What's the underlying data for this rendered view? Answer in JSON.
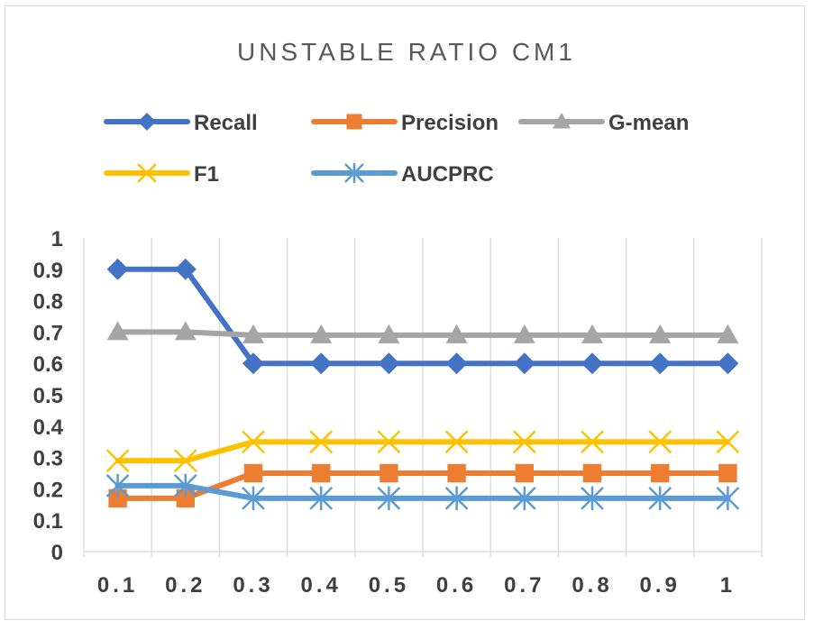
{
  "chart_data": {
    "type": "line",
    "title": "UNSTABLE RATIO CM1",
    "xlabel": "",
    "ylabel": "",
    "categories": [
      "0.1",
      "0.2",
      "0.3",
      "0.4",
      "0.5",
      "0.6",
      "0.7",
      "0.8",
      "0.9",
      "1"
    ],
    "ylim": [
      0,
      1
    ],
    "yticks": [
      "0",
      "0.1",
      "0.2",
      "0.3",
      "0.4",
      "0.5",
      "0.6",
      "0.7",
      "0.8",
      "0.9",
      "1"
    ],
    "grid": "vertical",
    "legend_position": "top",
    "series": [
      {
        "name": "Recall",
        "color": "#4472c4",
        "marker": "diamond",
        "values": [
          0.9,
          0.9,
          0.6,
          0.6,
          0.6,
          0.6,
          0.6,
          0.6,
          0.6,
          0.6
        ]
      },
      {
        "name": "Precision",
        "color": "#ed7d31",
        "marker": "square",
        "values": [
          0.17,
          0.17,
          0.25,
          0.25,
          0.25,
          0.25,
          0.25,
          0.25,
          0.25,
          0.25
        ]
      },
      {
        "name": "G-mean",
        "color": "#a5a5a5",
        "marker": "triangle",
        "values": [
          0.7,
          0.7,
          0.69,
          0.69,
          0.69,
          0.69,
          0.69,
          0.69,
          0.69,
          0.69
        ]
      },
      {
        "name": "F1",
        "color": "#ffc000",
        "marker": "x",
        "values": [
          0.29,
          0.29,
          0.35,
          0.35,
          0.35,
          0.35,
          0.35,
          0.35,
          0.35,
          0.35
        ]
      },
      {
        "name": "AUCPRC",
        "color": "#5b9bd5",
        "marker": "star",
        "values": [
          0.21,
          0.21,
          0.17,
          0.17,
          0.17,
          0.17,
          0.17,
          0.17,
          0.17,
          0.17
        ]
      }
    ]
  }
}
